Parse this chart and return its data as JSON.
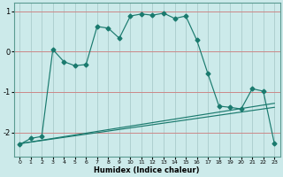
{
  "xlabel": "Humidex (Indice chaleur)",
  "background_color": "#cceaea",
  "grid_color": "#aacccc",
  "line_color": "#1a7a6e",
  "red_line_color": "#cc8888",
  "x": [
    0,
    1,
    2,
    3,
    4,
    5,
    6,
    7,
    8,
    9,
    10,
    11,
    12,
    13,
    14,
    15,
    16,
    17,
    18,
    19,
    20,
    21,
    22,
    23
  ],
  "line1": [
    -2.3,
    -2.15,
    -2.1,
    0.05,
    -0.25,
    -0.35,
    -0.32,
    0.62,
    0.58,
    0.33,
    0.88,
    0.93,
    0.9,
    0.95,
    0.82,
    0.88,
    0.28,
    -0.55,
    -1.35,
    -1.38,
    -1.42,
    -0.92,
    -0.98,
    -2.28
  ],
  "line2_x": [
    0,
    23
  ],
  "line2_y": [
    -2.28,
    -1.38
  ],
  "line3_x": [
    0,
    23
  ],
  "line3_y": [
    -2.28,
    -1.28
  ],
  "ylim": [
    -2.6,
    1.2
  ],
  "yticks": [
    -2,
    -1,
    0,
    1
  ],
  "xticks": [
    0,
    1,
    2,
    3,
    4,
    5,
    6,
    7,
    8,
    9,
    10,
    11,
    12,
    13,
    14,
    15,
    16,
    17,
    18,
    19,
    20,
    21,
    22,
    23
  ]
}
